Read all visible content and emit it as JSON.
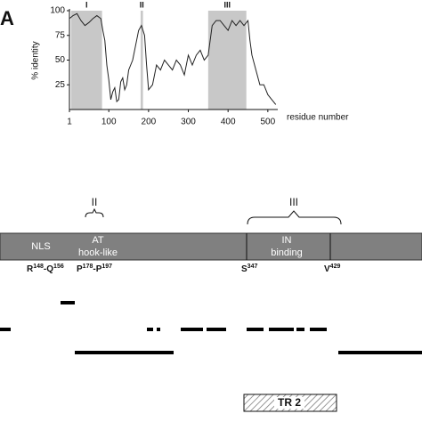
{
  "panel_label": "A",
  "chart_data": {
    "type": "line",
    "ylabel": "% identity",
    "xlabel": "residue number",
    "x": [
      1,
      10,
      20,
      30,
      40,
      50,
      60,
      70,
      80,
      85,
      90,
      95,
      100,
      105,
      110,
      115,
      120,
      125,
      130,
      135,
      140,
      145,
      150,
      160,
      170,
      175,
      182,
      190,
      195,
      200,
      210,
      220,
      230,
      240,
      250,
      260,
      270,
      280,
      290,
      300,
      310,
      320,
      330,
      340,
      350,
      360,
      370,
      380,
      390,
      400,
      410,
      420,
      430,
      440,
      450,
      455,
      460,
      470,
      480,
      490,
      500,
      510,
      520
    ],
    "series": [
      {
        "name": "identity",
        "color": "#222222",
        "values": [
          92,
          95,
          97,
          90,
          85,
          88,
          92,
          95,
          92,
          80,
          70,
          45,
          30,
          10,
          18,
          22,
          8,
          10,
          28,
          32,
          20,
          25,
          40,
          50,
          70,
          80,
          85,
          75,
          45,
          20,
          25,
          45,
          40,
          50,
          45,
          40,
          50,
          45,
          35,
          55,
          45,
          55,
          60,
          50,
          55,
          85,
          90,
          90,
          85,
          80,
          90,
          85,
          90,
          85,
          90,
          70,
          55,
          40,
          25,
          25,
          15,
          10,
          5
        ]
      }
    ],
    "xlim": [
      1,
      525
    ],
    "ylim": [
      0,
      100
    ],
    "xticks": [
      1,
      100,
      200,
      300,
      400,
      500
    ],
    "yticks": [
      25,
      50,
      75,
      100
    ],
    "regions": [
      {
        "label": "I",
        "start": 5,
        "end": 83
      },
      {
        "label": "II",
        "start": 180,
        "end": 186
      },
      {
        "label": "III",
        "start": 350,
        "end": 446
      }
    ],
    "region_color": "#c8c8c8"
  },
  "diagram": {
    "domains": [
      "NLS",
      "AT",
      "hook-like",
      "IN",
      "binding"
    ],
    "brackets": [
      "II",
      "III"
    ],
    "markers": [
      [
        "R",
        "148",
        "-",
        "Q",
        "156"
      ],
      [
        "P",
        "178",
        "-",
        "P",
        "197"
      ],
      [
        "S",
        "347"
      ],
      [
        "V",
        "429"
      ]
    ],
    "box": "TR 2"
  }
}
